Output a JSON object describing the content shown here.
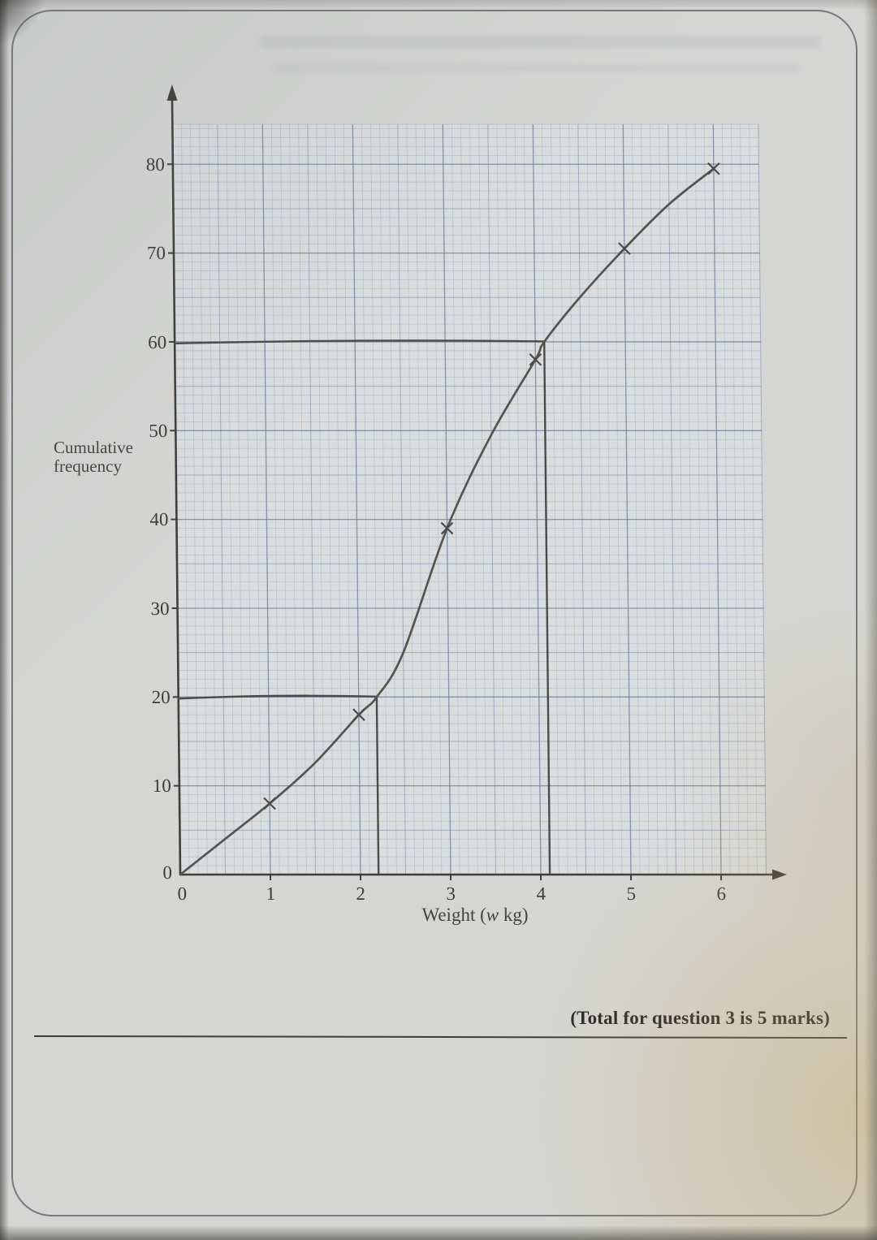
{
  "page": {
    "footer_total": "(Total for question 3 is 5 marks)"
  },
  "chart_data": {
    "type": "line",
    "subtype": "cumulative-frequency-ogive",
    "title": "",
    "xlabel": "Weight (w kg)",
    "xlabel_parts": {
      "prefix": "Weight (",
      "symbol": "w",
      "suffix": " kg)"
    },
    "ylabel": "Cumulative frequency",
    "x_tick_labels": [
      "0",
      "1",
      "2",
      "3",
      "4",
      "5",
      "6"
    ],
    "y_tick_labels": [
      "0",
      "10",
      "20",
      "30",
      "40",
      "50",
      "60",
      "70",
      "80"
    ],
    "xlim": [
      0,
      6.5
    ],
    "ylim": [
      0,
      85
    ],
    "grid": "fine graph paper; minor 0.1 kg / 1 unit, heavier every 0.5 kg / 5 units",
    "legend": "none",
    "series": [
      {
        "name": "cumulative frequency curve",
        "marked_points": [
          [
            1,
            8
          ],
          [
            2,
            18
          ],
          [
            3,
            39
          ],
          [
            4,
            58
          ],
          [
            5,
            70.5
          ],
          [
            6,
            79.5
          ]
        ],
        "curve_points": [
          [
            0,
            0
          ],
          [
            0.5,
            4
          ],
          [
            1,
            8
          ],
          [
            1.5,
            12.5
          ],
          [
            2,
            18
          ],
          [
            2.2,
            20
          ],
          [
            2.5,
            25
          ],
          [
            3,
            39
          ],
          [
            3.5,
            49.5
          ],
          [
            4,
            58
          ],
          [
            4.1,
            60
          ],
          [
            4.5,
            65
          ],
          [
            5,
            70.5
          ],
          [
            5.5,
            75.5
          ],
          [
            6,
            79.5
          ]
        ]
      }
    ],
    "reading_lines": [
      {
        "cf": 60,
        "w": 4.1,
        "description": "horizontal line at CF=60 to curve, then vertical down to w = 4.1"
      },
      {
        "cf": 20,
        "w": 2.2,
        "description": "horizontal line at CF=20 to curve, then vertical down to w = 2.2"
      }
    ]
  }
}
